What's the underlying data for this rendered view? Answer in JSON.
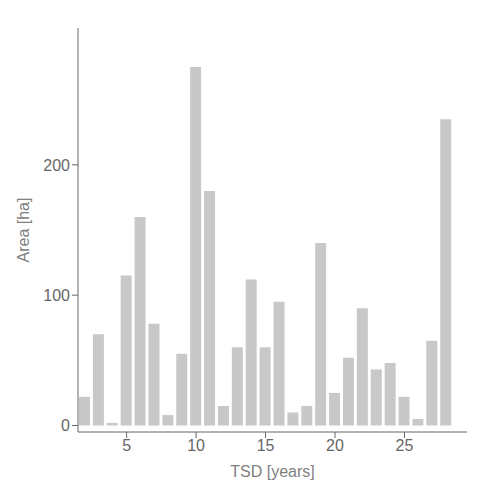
{
  "chart_data": {
    "type": "bar",
    "x": [
      2,
      3,
      4,
      5,
      6,
      7,
      8,
      9,
      10,
      11,
      12,
      13,
      14,
      15,
      16,
      17,
      18,
      19,
      20,
      21,
      22,
      23,
      24,
      25,
      26,
      27,
      28
    ],
    "values": [
      22,
      70,
      2,
      115,
      160,
      78,
      8,
      55,
      275,
      180,
      15,
      60,
      112,
      60,
      95,
      10,
      15,
      140,
      25,
      52,
      90,
      43,
      48,
      22,
      5,
      65,
      235
    ],
    "color": "#c8c8c8",
    "xlabel": "TSD [years]",
    "ylabel": "Area [ha]",
    "xlim": [
      1.5,
      29.5
    ],
    "ylim": [
      -5,
      305
    ],
    "xticks": [
      5,
      10,
      15,
      20,
      25
    ],
    "yticks": [
      0,
      100,
      200
    ],
    "grid": false
  }
}
